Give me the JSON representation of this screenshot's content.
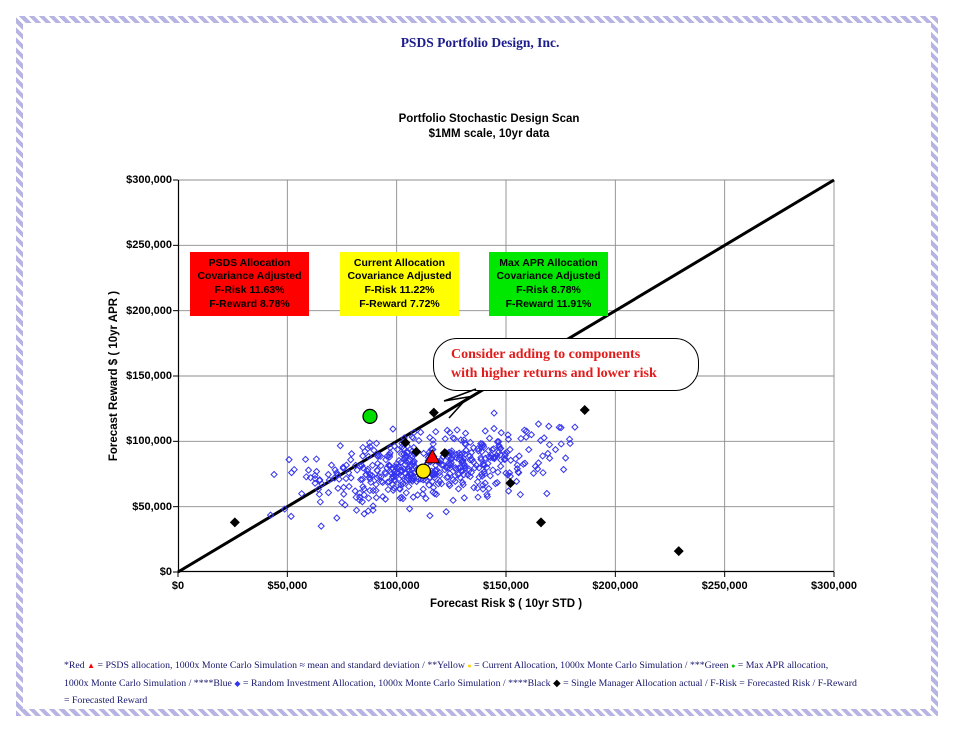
{
  "page": {
    "header": "PSDS Portfolio Design, Inc."
  },
  "chart_data": {
    "type": "scatter",
    "title": "Portfolio Stochastic Design Scan",
    "subtitle": "$1MM scale, 10yr data",
    "xlabel": "Forecast Risk $ ( 10yr STD )",
    "ylabel": "Forecast Reward $ ( 10yr APR )",
    "xlim": [
      0,
      300000
    ],
    "ylim": [
      0,
      300000
    ],
    "grid": true,
    "grid_color": "#8c8c8c",
    "xticks": {
      "values": [
        0,
        50000,
        100000,
        150000,
        200000,
        250000,
        300000
      ],
      "labels": [
        "$0",
        "$50,000",
        "$100,000",
        "$150,000",
        "$200,000",
        "$250,000",
        "$300,000"
      ]
    },
    "yticks": {
      "values": [
        0,
        50000,
        100000,
        150000,
        200000,
        250000,
        300000
      ],
      "labels": [
        "$0",
        "$50,000",
        "$100,000",
        "$150,000",
        "$200,000",
        "$250,000",
        "$300,000"
      ]
    },
    "diagonal_line": {
      "from": [
        0,
        0
      ],
      "to": [
        300000,
        300000
      ],
      "color": "#000000"
    },
    "series": [
      {
        "name": "Random Investment Allocation (1000x Monte Carlo Simulation)",
        "marker": "diamond-open",
        "color": "#3434f0",
        "generated": {
          "count": 500,
          "seed": 1234,
          "mean": [
            114000,
            80000
          ],
          "std": [
            27000,
            13000
          ],
          "slope": 0.22,
          "clip_x": [
            33000,
            196000
          ],
          "clip_y": [
            27000,
            131000
          ]
        }
      },
      {
        "name": "Single Manager Allocation actual (Black)",
        "marker": "diamond-filled",
        "color": "#000000",
        "points": [
          [
            26000,
            38000
          ],
          [
            104000,
            99000
          ],
          [
            109000,
            92000
          ],
          [
            117000,
            122000
          ],
          [
            122000,
            91000
          ],
          [
            152000,
            68000
          ],
          [
            166000,
            38000
          ],
          [
            186000,
            124000
          ],
          [
            229000,
            16000
          ]
        ]
      },
      {
        "name": "Max APR allocation (Green)",
        "marker": "circle",
        "color": "#00dd00",
        "points": [
          [
            87800,
            119100
          ]
        ]
      },
      {
        "name": "Current Allocation (Yellow)",
        "marker": "circle",
        "color": "#ffe800",
        "points": [
          [
            112200,
            77200
          ]
        ]
      },
      {
        "name": "PSDS allocation (Red)",
        "marker": "triangle",
        "color": "#ff0000",
        "points": [
          [
            116300,
            87800
          ]
        ]
      }
    ],
    "annotations": {
      "boxes": [
        {
          "bg": "#ff0000",
          "lines": [
            "PSDS Allocation",
            "Covariance Adjusted",
            "F-Risk 11.63%",
            "F-Reward 8.78%"
          ]
        },
        {
          "bg": "#ffff00",
          "lines": [
            "Current Allocation",
            "Covariance Adjusted",
            "F-Risk 11.22%",
            "F-Reward 7.72%"
          ]
        },
        {
          "bg": "#00e800",
          "lines": [
            "Max APR Allocation",
            "Covariance Adjusted",
            "F-Risk 8.78%",
            "F-Reward 11.91%"
          ]
        }
      ],
      "callout": {
        "lines": [
          "Consider adding to components",
          "with higher returns and lower risk"
        ]
      }
    }
  },
  "footnote": {
    "segments": [
      {
        "type": "text",
        "text": "*Red "
      },
      {
        "type": "marker",
        "shape": "triangle",
        "color": "#ff0000",
        "size": 8
      },
      {
        "type": "text",
        "text": " = PSDS allocation, 1000x Monte Carlo Simulation ≈ mean and standard deviation / **Yellow "
      },
      {
        "type": "marker",
        "shape": "circle",
        "color": "#ffd700",
        "size": 7
      },
      {
        "type": "text",
        "text": " = Current Allocation, 1000x Monte Carlo Simulation / ***Green "
      },
      {
        "type": "marker",
        "shape": "circle",
        "color": "#00c800",
        "size": 7
      },
      {
        "type": "text",
        "text": " = Max APR allocation,"
      },
      {
        "type": "break"
      },
      {
        "type": "text",
        "text": "1000x Monte Carlo Simulation / ****Blue "
      },
      {
        "type": "marker",
        "shape": "diamond",
        "color": "#3434f0",
        "size": 8
      },
      {
        "type": "text",
        "text": " = Random Investment Allocation, 1000x Monte Carlo Simulation / ****Black "
      },
      {
        "type": "marker",
        "shape": "diamond",
        "color": "#000000",
        "size": 10
      },
      {
        "type": "text",
        "text": " = Single Manager Allocation actual / F-Risk = Forecasted Risk / F-Reward"
      },
      {
        "type": "break"
      },
      {
        "type": "text",
        "text": "= Forecasted Reward"
      }
    ]
  }
}
